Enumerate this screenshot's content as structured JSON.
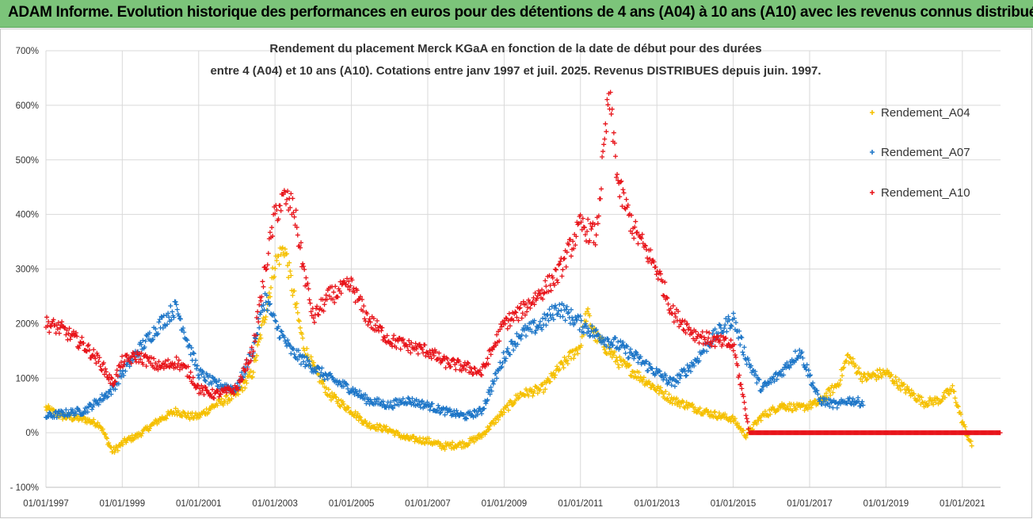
{
  "header": {
    "banner_title": "ADAM Informe. Evolution historique des performances en euros pour des détentions de 4 ans (A04) à 10 ans (A10) avec les revenus connus distribués"
  },
  "colors": {
    "banner": "#7cc47a",
    "A04": "#f5c000",
    "A07": "#1f77c8",
    "A10": "#e8151b",
    "grid": "#d9d9d9"
  },
  "chart_data": {
    "type": "scatter",
    "title_line1": "Rendement du placement Merck KGaA en fonction de la date de début pour des durées",
    "title_line2": "entre 4 (A04) et 10 ans (A10).  Cotations entre janv 1997 et juil. 2025. Revenus DISTRIBUES depuis juin. 1997.",
    "ylim": [
      -100,
      700
    ],
    "y_ticks": [
      -100,
      0,
      100,
      200,
      300,
      400,
      500,
      600,
      700
    ],
    "y_tick_labels": [
      "- 100%",
      "0%",
      "100%",
      "200%",
      "300%",
      "400%",
      "500%",
      "600%",
      "700%"
    ],
    "x_range": [
      "1997-01-01",
      "2022-01-01"
    ],
    "x_tick_labels": [
      "01/01/1997",
      "01/01/1999",
      "01/01/2001",
      "01/01/2003",
      "01/01/2005",
      "01/01/2007",
      "01/01/2009",
      "01/01/2011",
      "01/01/2013",
      "01/01/2015",
      "01/01/2017",
      "01/01/2019",
      "01/01/2021"
    ],
    "x_ticks": [
      "1997-01-01",
      "1999-01-01",
      "2001-01-01",
      "2003-01-01",
      "2005-01-01",
      "2007-01-01",
      "2009-01-01",
      "2011-01-01",
      "2013-01-01",
      "2015-01-01",
      "2017-01-01",
      "2019-01-01",
      "2021-01-01"
    ],
    "grid": true,
    "legend_position": "right",
    "series": [
      {
        "name": "Rendement_A04",
        "color": "#f5c000",
        "x": [
          "1997-01-01",
          "1997-06-01",
          "1998-01-01",
          "1998-06-01",
          "1998-10-01",
          "1999-02-01",
          "1999-06-01",
          "2000-01-01",
          "2000-06-01",
          "2000-10-01",
          "2001-01-01",
          "2001-06-01",
          "2002-01-01",
          "2002-06-01",
          "2002-10-01",
          "2003-01-01",
          "2003-04-01",
          "2003-07-01",
          "2003-10-01",
          "2004-01-01",
          "2004-06-01",
          "2005-01-01",
          "2005-06-01",
          "2006-01-01",
          "2006-06-01",
          "2007-01-01",
          "2007-06-01",
          "2008-01-01",
          "2008-06-01",
          "2009-01-01",
          "2009-06-01",
          "2010-01-01",
          "2010-06-01",
          "2011-01-01",
          "2011-03-01",
          "2011-06-01",
          "2011-10-01",
          "2012-01-01",
          "2012-06-01",
          "2013-01-01",
          "2013-06-01",
          "2014-01-01",
          "2014-06-01",
          "2015-01-01",
          "2015-05-01",
          "2015-10-01",
          "2016-04-01",
          "2016-10-01",
          "2017-04-01",
          "2017-10-01",
          "2018-01-01",
          "2018-06-01",
          "2019-01-01",
          "2019-06-01",
          "2020-01-01",
          "2020-06-01",
          "2020-10-01",
          "2021-01-01",
          "2021-04-01"
        ],
        "y": [
          45,
          30,
          25,
          15,
          -35,
          -15,
          -5,
          25,
          40,
          30,
          30,
          50,
          70,
          110,
          220,
          310,
          340,
          250,
          160,
          120,
          70,
          40,
          15,
          5,
          -10,
          -15,
          -25,
          -20,
          -5,
          40,
          70,
          80,
          115,
          160,
          220,
          175,
          150,
          130,
          110,
          80,
          60,
          45,
          35,
          25,
          -5,
          30,
          50,
          45,
          55,
          90,
          140,
          100,
          110,
          85,
          55,
          60,
          80,
          20,
          -25
        ]
      },
      {
        "name": "Rendement_A07",
        "color": "#1f77c8",
        "x": [
          "1997-01-01",
          "1997-06-01",
          "1998-01-01",
          "1998-06-01",
          "1998-10-01",
          "1999-01-01",
          "1999-06-01",
          "2000-01-01",
          "2000-06-01",
          "2000-10-01",
          "2001-01-01",
          "2001-06-01",
          "2002-01-01",
          "2002-06-01",
          "2002-10-01",
          "2003-01-01",
          "2003-06-01",
          "2004-01-01",
          "2004-06-01",
          "2005-01-01",
          "2005-06-01",
          "2006-01-01",
          "2006-06-01",
          "2007-01-01",
          "2007-06-01",
          "2008-01-01",
          "2008-06-01",
          "2009-01-01",
          "2009-06-01",
          "2010-01-01",
          "2010-06-01",
          "2011-01-01",
          "2011-06-01",
          "2012-01-01",
          "2012-06-01",
          "2013-01-01",
          "2013-06-01",
          "2014-01-01",
          "2014-06-01",
          "2015-01-01",
          "2015-05-01",
          "2015-10-01",
          "2016-04-01",
          "2016-10-01",
          "2017-04-01",
          "2017-10-01",
          "2018-01-01",
          "2018-06-01"
        ],
        "y": [
          30,
          35,
          40,
          60,
          80,
          110,
          150,
          200,
          230,
          160,
          110,
          90,
          80,
          150,
          250,
          200,
          150,
          120,
          100,
          80,
          60,
          50,
          60,
          50,
          40,
          30,
          40,
          140,
          180,
          200,
          230,
          200,
          180,
          160,
          140,
          110,
          90,
          130,
          170,
          210,
          140,
          80,
          110,
          150,
          60,
          50,
          60,
          55
        ]
      },
      {
        "name": "Rendement_A10",
        "color": "#e8151b",
        "x": [
          "1997-01-01",
          "1997-06-01",
          "1998-01-01",
          "1998-06-01",
          "1998-10-01",
          "1999-01-01",
          "1999-06-01",
          "2000-01-01",
          "2000-06-01",
          "2000-10-01",
          "2001-01-01",
          "2001-06-01",
          "2002-01-01",
          "2002-06-01",
          "2002-10-01",
          "2003-01-01",
          "2003-04-01",
          "2003-07-01",
          "2003-10-01",
          "2004-01-01",
          "2004-06-01",
          "2005-01-01",
          "2005-06-01",
          "2006-01-01",
          "2006-06-01",
          "2007-01-01",
          "2007-06-01",
          "2008-01-01",
          "2008-06-01",
          "2009-01-01",
          "2009-06-01",
          "2010-01-01",
          "2010-06-01",
          "2011-01-01",
          "2011-06-01",
          "2011-10-01",
          "2012-01-01",
          "2012-06-01",
          "2013-01-01",
          "2013-06-01",
          "2014-01-01",
          "2014-06-01",
          "2015-01-01",
          "2015-05-01",
          "2015-06-01",
          "2016-01-01",
          "2017-01-01",
          "2018-01-01",
          "2019-01-01",
          "2020-01-01",
          "2021-01-01",
          "2021-12-31"
        ],
        "y": [
          200,
          190,
          160,
          130,
          90,
          130,
          140,
          120,
          130,
          110,
          80,
          70,
          80,
          150,
          300,
          400,
          430,
          410,
          300,
          210,
          250,
          270,
          210,
          170,
          160,
          150,
          130,
          120,
          110,
          200,
          220,
          260,
          290,
          380,
          360,
          620,
          450,
          370,
          300,
          220,
          180,
          170,
          160,
          40,
          0,
          0,
          0,
          0,
          0,
          0,
          0,
          0
        ]
      }
    ]
  }
}
